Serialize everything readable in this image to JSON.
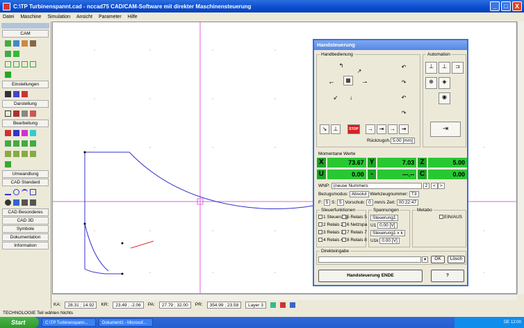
{
  "window": {
    "title": "C:\\TP Turbinenspannt.cad - nccad75  CAD/CAM-Software mit direkter Maschinensteuerung",
    "min": "_",
    "max": "□",
    "close": "X"
  },
  "menu": [
    "Datei",
    "Maschine",
    "Simulation",
    "Ansicht",
    "Parameter",
    "Hilfe"
  ],
  "sidebar": {
    "sections": [
      "CAM",
      "Einstellungen",
      "Darstellung",
      "Bearbeitung",
      "Umwandlung",
      "CAD Standard",
      "CAD Besonderes",
      "CAD 3D",
      "Symbole",
      "Dokumentation",
      "Information"
    ]
  },
  "dialog": {
    "title": "Handsteuerung",
    "handbedienung_label": "Handbedienung",
    "automation_label": "Automation",
    "stop_label": "STOP",
    "rueckzugsh_label": "Rückzugsh.:",
    "rueckzugsh_value": "5.00 [mm]",
    "momentane_label": "Momentane Werte",
    "values": {
      "x_label": "X",
      "x_value": "73.67",
      "y_label": "Y",
      "y_value": "7.03",
      "z_label": "Z",
      "z_value": "5.00",
      "u_label": "U",
      "u_value": "0.00",
      "dash_label": "-",
      "dash_value": "---.--",
      "c_label": "C",
      "c_value": "0.00"
    },
    "wnp_label": "WNP:",
    "wnp_value": "(neuse Nummers",
    "wnp_num": "2",
    "bezugsmodus_label": "Bezugsmodus:",
    "bezugsmodus_value": "Absolut",
    "werkzeug_label": "Werkzeugnummer:",
    "werkzeug_value": "T3",
    "f_label": "F:",
    "f_value": "5",
    "s_label": "S:",
    "s_value": "5",
    "vorschub_label": "Vorschub:",
    "vorschub_value": "0",
    "vorschub_unit": "mm/s",
    "zeit_label": "Zeit:",
    "zeit_value": "00:22:47",
    "steuer_label": "Steuerfunktionen",
    "relais": [
      "1 Steuerung",
      "5 Relais 5",
      "2 Relais 2",
      "6 Netzspa",
      "3 Relais 3",
      "7 Relais 7",
      "4 Relais 4",
      "8 Relais 8"
    ],
    "spannungen_label": "Spannungen",
    "spannungen": [
      "Steuerung1",
      "U1",
      "Steuerung1 x k",
      "U1k"
    ],
    "u1_value": "0.00 [V]",
    "u1k_value": "0.00 [V]",
    "metabo_label": "Metabo",
    "einaus_label": "EIN/AUS",
    "direkt_label": "Direkteingabe",
    "ok_label": "OK",
    "loesch_label": "Lösch",
    "ende_label": "Handsteuerung  ENDE",
    "help_label": "?"
  },
  "statusbar": {
    "ka_label": "KA:",
    "ka_value": "28.31 ; 14.92",
    "kr_label": "KR:",
    "kr_value": "23.49 ; -2.06",
    "pa_label": "PA:",
    "pa_value": "27.79 ; 32.00",
    "pr_label": "PR:",
    "pr_value": "354.99 ; 23.58",
    "layer_label": "Layer 3"
  },
  "techbar": "TECHNOLOGIE  Teil wählen  Nichts",
  "taskbar": {
    "start": "Start",
    "tasks": [
      "C:\\TP Turbinenspann...",
      "Dokument1 - Microsof..."
    ],
    "tray": "DE  12:00"
  }
}
